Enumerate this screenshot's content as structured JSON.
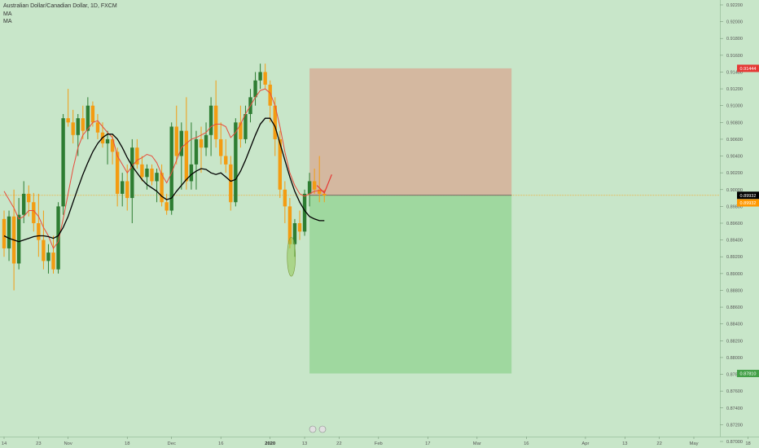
{
  "header": {
    "title": "Australian Dollar/Canadian Dollar, 1D, FXCM",
    "indicators": [
      "MA",
      "MA"
    ]
  },
  "colors": {
    "background": "#c8e6c9",
    "bull": "#2e7d32",
    "bear": "#f39c12",
    "ma_fast": "#e74c3c",
    "ma_slow": "#000000",
    "risk_zone": "#d4b8a0",
    "reward_zone": "#9fd89f",
    "stop_tag": "#e53935",
    "entry_tag": "#ff9800",
    "target_tag": "#43a047",
    "current_tag": "#000000"
  },
  "chart_data": {
    "type": "candlestick",
    "symbol": "AUD/CAD",
    "timeframe": "1D",
    "ylim": [
      0.87,
      0.922
    ],
    "y_ticks": [
      "0.92200",
      "0.92000",
      "0.91800",
      "0.91600",
      "0.91400",
      "0.91200",
      "0.91000",
      "0.90800",
      "0.90600",
      "0.90400",
      "0.90200",
      "0.90000",
      "0.89800",
      "0.89600",
      "0.89400",
      "0.89200",
      "0.89000",
      "0.88800",
      "0.88600",
      "0.88400",
      "0.88200",
      "0.88000",
      "0.87800",
      "0.87600",
      "0.87400",
      "0.87200",
      "0.87000"
    ],
    "x_ticks": [
      {
        "label": "14",
        "day": 0
      },
      {
        "label": "23",
        "day": 7
      },
      {
        "label": "Nov",
        "day": 13
      },
      {
        "label": "18",
        "day": 25
      },
      {
        "label": "Dec",
        "day": 34
      },
      {
        "label": "16",
        "day": 44
      },
      {
        "label": "2020",
        "day": 54
      },
      {
        "label": "13",
        "day": 61
      },
      {
        "label": "22",
        "day": 68
      },
      {
        "label": "Feb",
        "day": 76
      },
      {
        "label": "17",
        "day": 86
      },
      {
        "label": "Mar",
        "day": 96
      },
      {
        "label": "16",
        "day": 106
      },
      {
        "label": "Apr",
        "day": 118
      },
      {
        "label": "13",
        "day": 126
      },
      {
        "label": "22",
        "day": 133
      },
      {
        "label": "May",
        "day": 140
      },
      {
        "label": "18",
        "day": 151
      }
    ],
    "candles": [
      {
        "o": 0.8965,
        "h": 0.8975,
        "l": 0.892,
        "c": 0.893
      },
      {
        "o": 0.893,
        "h": 0.8975,
        "l": 0.8915,
        "c": 0.8968
      },
      {
        "o": 0.8968,
        "h": 0.9,
        "l": 0.888,
        "c": 0.8912
      },
      {
        "o": 0.8912,
        "h": 0.899,
        "l": 0.8905,
        "c": 0.897
      },
      {
        "o": 0.897,
        "h": 0.901,
        "l": 0.896,
        "c": 0.8995
      },
      {
        "o": 0.8995,
        "h": 0.9005,
        "l": 0.8968,
        "c": 0.8985
      },
      {
        "o": 0.8985,
        "h": 0.8996,
        "l": 0.895,
        "c": 0.896
      },
      {
        "o": 0.896,
        "h": 0.8995,
        "l": 0.892,
        "c": 0.894
      },
      {
        "o": 0.894,
        "h": 0.8975,
        "l": 0.8905,
        "c": 0.8915
      },
      {
        "o": 0.8915,
        "h": 0.8935,
        "l": 0.89,
        "c": 0.8925
      },
      {
        "o": 0.8925,
        "h": 0.8945,
        "l": 0.89,
        "c": 0.8905
      },
      {
        "o": 0.8905,
        "h": 0.8985,
        "l": 0.89,
        "c": 0.898
      },
      {
        "o": 0.898,
        "h": 0.909,
        "l": 0.897,
        "c": 0.9085
      },
      {
        "o": 0.9085,
        "h": 0.912,
        "l": 0.9075,
        "c": 0.908
      },
      {
        "o": 0.908,
        "h": 0.9095,
        "l": 0.9055,
        "c": 0.9065
      },
      {
        "o": 0.9065,
        "h": 0.909,
        "l": 0.904,
        "c": 0.9085
      },
      {
        "o": 0.9085,
        "h": 0.91,
        "l": 0.906,
        "c": 0.907
      },
      {
        "o": 0.907,
        "h": 0.911,
        "l": 0.906,
        "c": 0.91
      },
      {
        "o": 0.91,
        "h": 0.9105,
        "l": 0.9075,
        "c": 0.908
      },
      {
        "o": 0.908,
        "h": 0.909,
        "l": 0.906,
        "c": 0.9068
      },
      {
        "o": 0.9068,
        "h": 0.908,
        "l": 0.905,
        "c": 0.9055
      },
      {
        "o": 0.9055,
        "h": 0.907,
        "l": 0.903,
        "c": 0.906
      },
      {
        "o": 0.906,
        "h": 0.9065,
        "l": 0.903,
        "c": 0.9045
      },
      {
        "o": 0.9045,
        "h": 0.905,
        "l": 0.898,
        "c": 0.8995
      },
      {
        "o": 0.8995,
        "h": 0.902,
        "l": 0.898,
        "c": 0.901
      },
      {
        "o": 0.901,
        "h": 0.903,
        "l": 0.8975,
        "c": 0.899
      },
      {
        "o": 0.899,
        "h": 0.906,
        "l": 0.896,
        "c": 0.905
      },
      {
        "o": 0.905,
        "h": 0.906,
        "l": 0.9025,
        "c": 0.903
      },
      {
        "o": 0.903,
        "h": 0.904,
        "l": 0.901,
        "c": 0.9015
      },
      {
        "o": 0.9015,
        "h": 0.903,
        "l": 0.9,
        "c": 0.9025
      },
      {
        "o": 0.9025,
        "h": 0.903,
        "l": 0.9005,
        "c": 0.901
      },
      {
        "o": 0.901,
        "h": 0.9025,
        "l": 0.8985,
        "c": 0.902
      },
      {
        "o": 0.902,
        "h": 0.903,
        "l": 0.898,
        "c": 0.8985
      },
      {
        "o": 0.8985,
        "h": 0.8995,
        "l": 0.897,
        "c": 0.8975
      },
      {
        "o": 0.8975,
        "h": 0.908,
        "l": 0.897,
        "c": 0.9075
      },
      {
        "o": 0.9075,
        "h": 0.91,
        "l": 0.903,
        "c": 0.904
      },
      {
        "o": 0.904,
        "h": 0.908,
        "l": 0.9,
        "c": 0.907
      },
      {
        "o": 0.907,
        "h": 0.911,
        "l": 0.9,
        "c": 0.901
      },
      {
        "o": 0.901,
        "h": 0.908,
        "l": 0.9,
        "c": 0.903
      },
      {
        "o": 0.903,
        "h": 0.907,
        "l": 0.9,
        "c": 0.906
      },
      {
        "o": 0.906,
        "h": 0.9075,
        "l": 0.902,
        "c": 0.905
      },
      {
        "o": 0.905,
        "h": 0.908,
        "l": 0.904,
        "c": 0.9065
      },
      {
        "o": 0.9065,
        "h": 0.911,
        "l": 0.904,
        "c": 0.91
      },
      {
        "o": 0.91,
        "h": 0.913,
        "l": 0.905,
        "c": 0.906
      },
      {
        "o": 0.906,
        "h": 0.908,
        "l": 0.903,
        "c": 0.904
      },
      {
        "o": 0.904,
        "h": 0.906,
        "l": 0.902,
        "c": 0.903
      },
      {
        "o": 0.903,
        "h": 0.904,
        "l": 0.8975,
        "c": 0.8985
      },
      {
        "o": 0.8985,
        "h": 0.9085,
        "l": 0.898,
        "c": 0.908
      },
      {
        "o": 0.908,
        "h": 0.91,
        "l": 0.905,
        "c": 0.906
      },
      {
        "o": 0.906,
        "h": 0.91,
        "l": 0.9055,
        "c": 0.909
      },
      {
        "o": 0.909,
        "h": 0.912,
        "l": 0.908,
        "c": 0.911
      },
      {
        "o": 0.911,
        "h": 0.914,
        "l": 0.91,
        "c": 0.913
      },
      {
        "o": 0.913,
        "h": 0.915,
        "l": 0.912,
        "c": 0.914
      },
      {
        "o": 0.914,
        "h": 0.915,
        "l": 0.912,
        "c": 0.9125
      },
      {
        "o": 0.9125,
        "h": 0.913,
        "l": 0.908,
        "c": 0.91
      },
      {
        "o": 0.91,
        "h": 0.911,
        "l": 0.904,
        "c": 0.906
      },
      {
        "o": 0.906,
        "h": 0.907,
        "l": 0.899,
        "c": 0.9
      },
      {
        "o": 0.9,
        "h": 0.901,
        "l": 0.896,
        "c": 0.898
      },
      {
        "o": 0.898,
        "h": 0.899,
        "l": 0.893,
        "c": 0.8935
      },
      {
        "o": 0.8935,
        "h": 0.8965,
        "l": 0.892,
        "c": 0.896
      },
      {
        "o": 0.896,
        "h": 0.8975,
        "l": 0.894,
        "c": 0.895
      },
      {
        "o": 0.895,
        "h": 0.9,
        "l": 0.8945,
        "c": 0.8995
      },
      {
        "o": 0.8995,
        "h": 0.902,
        "l": 0.898,
        "c": 0.901
      },
      {
        "o": 0.901,
        "h": 0.9025,
        "l": 0.8995,
        "c": 0.9
      },
      {
        "o": 0.9,
        "h": 0.904,
        "l": 0.8985,
        "c": 0.8995
      },
      {
        "o": 0.8995,
        "h": 0.9,
        "l": 0.8985,
        "c": 0.8993
      }
    ],
    "ma_fast": [
      0.8998,
      0.8988,
      0.8978,
      0.8965,
      0.8968,
      0.8975,
      0.8975,
      0.8968,
      0.8955,
      0.8945,
      0.893,
      0.8938,
      0.8965,
      0.8995,
      0.9025,
      0.905,
      0.9065,
      0.9072,
      0.908,
      0.9082,
      0.9075,
      0.9068,
      0.9062,
      0.904,
      0.903,
      0.902,
      0.9028,
      0.9035,
      0.9038,
      0.9042,
      0.904,
      0.9032,
      0.9018,
      0.9008,
      0.902,
      0.9035,
      0.905,
      0.9055,
      0.906,
      0.9062,
      0.9065,
      0.9068,
      0.9075,
      0.9078,
      0.9078,
      0.9075,
      0.9062,
      0.9068,
      0.9078,
      0.909,
      0.91,
      0.911,
      0.9118,
      0.912,
      0.9115,
      0.91,
      0.9075,
      0.9045,
      0.902,
      0.9005,
      0.8995,
      0.8992,
      0.8995,
      0.8998,
      0.8999,
      0.8998
    ],
    "ma_slow": [
      0.8945,
      0.8942,
      0.894,
      0.8938,
      0.894,
      0.8942,
      0.8944,
      0.8945,
      0.8945,
      0.8944,
      0.8942,
      0.8945,
      0.8955,
      0.8968,
      0.8985,
      0.9002,
      0.9018,
      0.9032,
      0.9045,
      0.9055,
      0.9062,
      0.9066,
      0.9066,
      0.906,
      0.905,
      0.9038,
      0.9028,
      0.902,
      0.9012,
      0.9006,
      0.9002,
      0.8998,
      0.8992,
      0.8988,
      0.899,
      0.8998,
      0.9005,
      0.9012,
      0.9018,
      0.9022,
      0.9025,
      0.9024,
      0.902,
      0.9018,
      0.902,
      0.9015,
      0.901,
      0.9012,
      0.9022,
      0.9035,
      0.905,
      0.9065,
      0.9078,
      0.9085,
      0.9085,
      0.9075,
      0.9055,
      0.9035,
      0.9015,
      0.8998,
      0.8985,
      0.8975,
      0.8968,
      0.8965,
      0.8963,
      0.8963
    ],
    "position": {
      "entry": 0.89932,
      "stop": 0.91444,
      "target": 0.8781,
      "start_day": 62,
      "end_day": 103
    },
    "price_tags": {
      "stop": "0.91444",
      "current": "0.89932",
      "entry": "0.89932",
      "target": "0.87810"
    }
  }
}
